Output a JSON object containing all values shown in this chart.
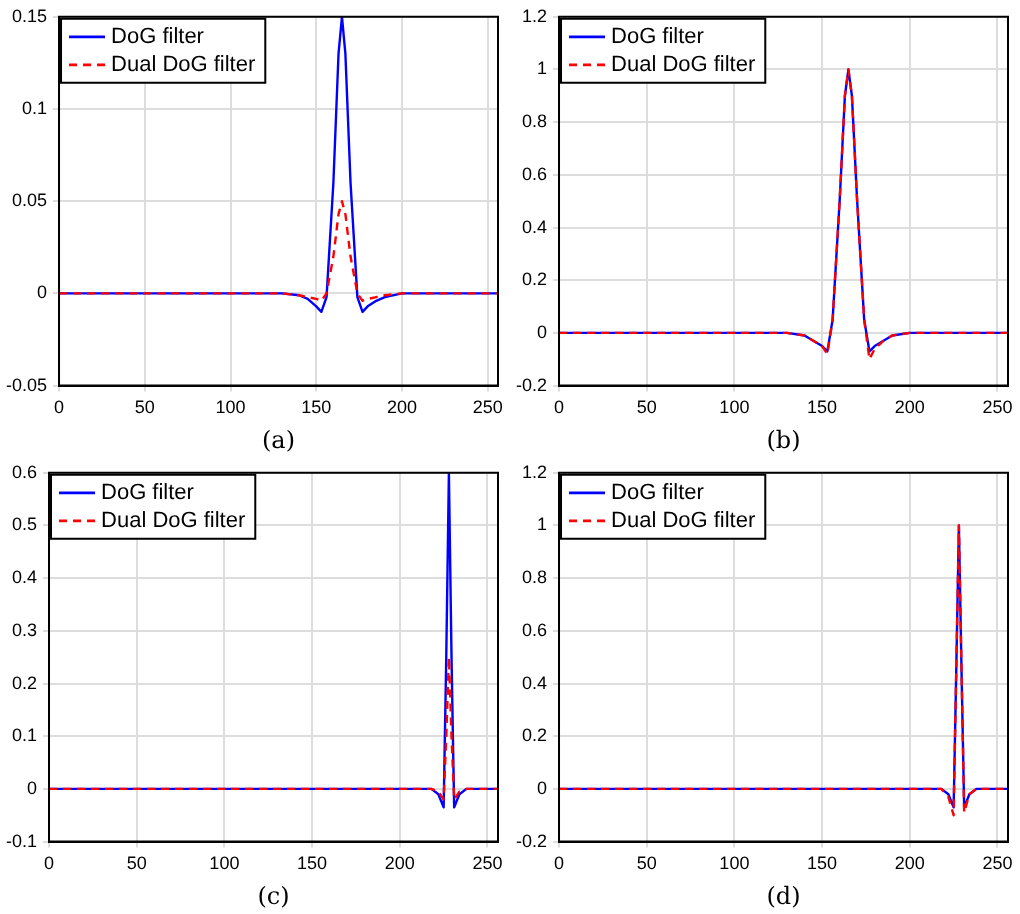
{
  "chart_data": [
    {
      "type": "line",
      "xlabel": "(a)",
      "x": [
        0,
        130,
        140,
        145,
        150,
        153,
        156,
        160,
        163,
        165,
        167,
        170,
        174,
        177,
        180,
        185,
        190,
        200,
        256
      ],
      "xlim": [
        0,
        256
      ],
      "xticks": [
        0,
        50,
        100,
        150,
        200,
        250
      ],
      "ylim": [
        -0.05,
        0.15
      ],
      "yticks": [
        -0.05,
        0,
        0.05,
        0.1,
        0.15
      ],
      "grid": true,
      "legend": "top left",
      "series": [
        {
          "name": "DoG filter",
          "color": "#0000ff",
          "line_style": "solid",
          "values": [
            0,
            0,
            -0.001,
            -0.003,
            -0.007,
            -0.01,
            -0.002,
            0.06,
            0.13,
            0.15,
            0.13,
            0.06,
            -0.002,
            -0.01,
            -0.007,
            -0.004,
            -0.002,
            0,
            0
          ]
        },
        {
          "name": "Dual DoG filter",
          "color": "#ff0000",
          "line_style": "dashed",
          "values": [
            0,
            0,
            -0.001,
            -0.002,
            -0.003,
            -0.004,
            0,
            0.02,
            0.043,
            0.05,
            0.043,
            0.02,
            0,
            -0.004,
            -0.003,
            -0.002,
            -0.001,
            0,
            0
          ]
        }
      ]
    },
    {
      "type": "line",
      "xlabel": "(b)",
      "x": [
        0,
        130,
        140,
        145,
        150,
        153,
        156,
        160,
        163,
        165,
        167,
        170,
        174,
        177,
        180,
        185,
        190,
        200,
        256
      ],
      "xlim": [
        0,
        256
      ],
      "xticks": [
        0,
        50,
        100,
        150,
        200,
        250
      ],
      "ylim": [
        -0.2,
        1.2
      ],
      "yticks": [
        -0.2,
        0,
        0.2,
        0.4,
        0.6,
        0.8,
        1,
        1.2
      ],
      "grid": true,
      "legend": "top left",
      "series": [
        {
          "name": "DoG filter",
          "color": "#0000ff",
          "line_style": "solid",
          "values": [
            0,
            0,
            -0.01,
            -0.03,
            -0.05,
            -0.07,
            0.05,
            0.5,
            0.9,
            1,
            0.9,
            0.5,
            0.05,
            -0.07,
            -0.05,
            -0.03,
            -0.01,
            0,
            0
          ]
        },
        {
          "name": "Dual DoG filter",
          "color": "#ff0000",
          "line_style": "dashed",
          "values": [
            0,
            0,
            -0.01,
            -0.03,
            -0.05,
            -0.08,
            0.05,
            0.5,
            0.9,
            1,
            0.9,
            0.5,
            0.05,
            -0.1,
            -0.06,
            -0.03,
            -0.01,
            0,
            0
          ]
        }
      ]
    },
    {
      "type": "line",
      "xlabel": "(c)",
      "x": [
        0,
        218,
        222,
        225,
        226.5,
        228,
        229.5,
        231,
        234,
        238,
        256
      ],
      "xlim": [
        0,
        256
      ],
      "xticks": [
        0,
        50,
        100,
        150,
        200,
        250
      ],
      "ylim": [
        -0.1,
        0.6
      ],
      "yticks": [
        -0.1,
        0,
        0.1,
        0.2,
        0.3,
        0.4,
        0.5,
        0.6
      ],
      "grid": true,
      "legend": "top left",
      "series": [
        {
          "name": "DoG filter",
          "color": "#0000ff",
          "line_style": "solid",
          "values": [
            0,
            0,
            -0.01,
            -0.035,
            0.25,
            0.6,
            0.25,
            -0.035,
            -0.01,
            0,
            0
          ]
        },
        {
          "name": "Dual DoG filter",
          "color": "#ff0000",
          "line_style": "dashed",
          "values": [
            0,
            0,
            -0.005,
            -0.02,
            0.1,
            0.25,
            0.1,
            -0.02,
            -0.005,
            0,
            0
          ]
        }
      ]
    },
    {
      "type": "line",
      "xlabel": "(d)",
      "x": [
        0,
        218,
        222,
        225,
        226.5,
        228,
        229.5,
        231,
        234,
        238,
        256
      ],
      "xlim": [
        0,
        256
      ],
      "xticks": [
        0,
        50,
        100,
        150,
        200,
        250
      ],
      "ylim": [
        -0.2,
        1.2
      ],
      "yticks": [
        -0.2,
        0,
        0.2,
        0.4,
        0.6,
        0.8,
        1,
        1.2
      ],
      "grid": true,
      "legend": "top left",
      "series": [
        {
          "name": "DoG filter",
          "color": "#0000ff",
          "line_style": "solid",
          "values": [
            0,
            0,
            -0.02,
            -0.07,
            0.45,
            1,
            0.45,
            -0.07,
            -0.02,
            0,
            0
          ]
        },
        {
          "name": "Dual DoG filter",
          "color": "#ff0000",
          "line_style": "dashed",
          "values": [
            0,
            0,
            -0.03,
            -0.1,
            0.45,
            1,
            0.45,
            -0.09,
            -0.02,
            0,
            0
          ]
        }
      ]
    }
  ]
}
